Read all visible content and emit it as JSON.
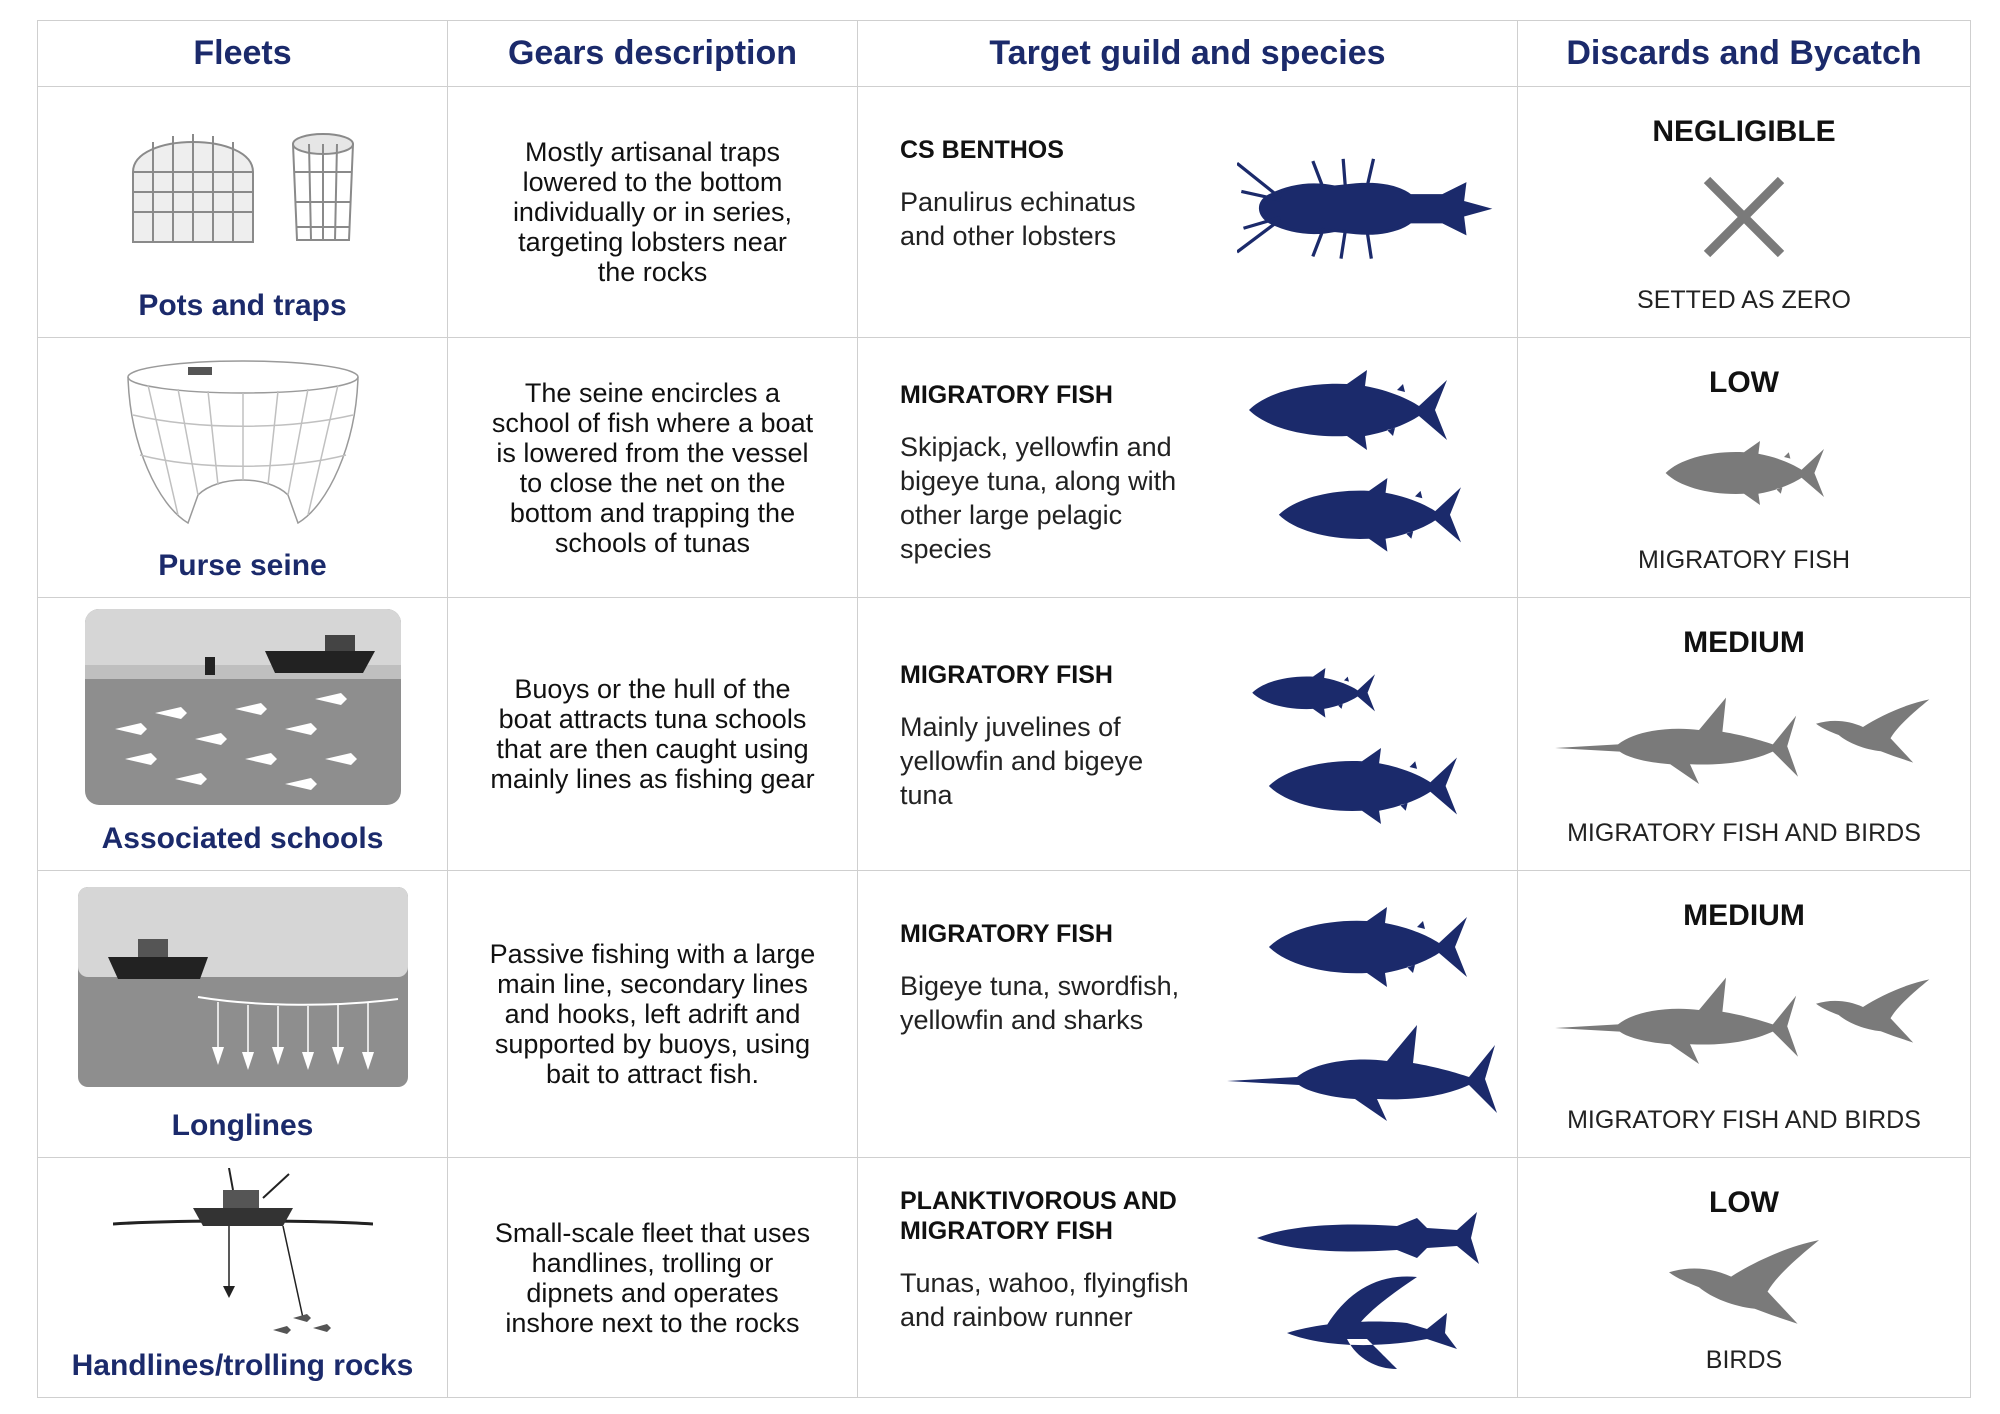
{
  "headers": {
    "fleets": "Fleets",
    "gears": "Gears description",
    "target": "Target guild and species",
    "discards": "Discards and Bycatch"
  },
  "colors": {
    "navy": "#1b2a6b",
    "grey": "#7a7a7a",
    "grid": "#cfcfcf"
  },
  "rows": [
    {
      "fleet": "Pots and traps",
      "fleet_icon": "pots-traps-illustration",
      "gear": "Mostly artisanal traps\nlowered to the bottom\nindividually or in series,\ntargeting lobsters near\nthe rocks",
      "guild": "CS BENTHOS",
      "species": "Panulirus echinatus and other lobsters",
      "target_icon": "lobster-icon",
      "level": "NEGLIGIBLE",
      "bycatch_icon": "cross-icon",
      "note": "SETTED AS ZERO"
    },
    {
      "fleet": "Purse seine",
      "fleet_icon": "purse-seine-illustration",
      "gear": "The seine encircles a\nschool of fish where a boat\nis lowered from the vessel\nto close the net on the\nbottom and trapping the\nschools of tunas",
      "guild": "MIGRATORY FISH",
      "species": "Skipjack, yellowfin and bigeye tuna, along with other large pelagic species",
      "target_icon": "tuna-icon",
      "level": "LOW",
      "bycatch_icon": "tuna-icon",
      "note": "MIGRATORY FISH"
    },
    {
      "fleet": "Associated schools",
      "fleet_icon": "associated-schools-illustration",
      "gear": "Buoys or the hull of the\nboat attracts tuna schools\nthat are then caught using\nmainly lines as fishing gear",
      "guild": "MIGRATORY FISH",
      "species": "Mainly juvelines of yellowfin and bigeye tuna",
      "target_icon": "tuna-icon",
      "level": "MEDIUM",
      "bycatch_icon": "swordfish-bird-icon",
      "note": "MIGRATORY FISH AND BIRDS"
    },
    {
      "fleet": "Longlines",
      "fleet_icon": "longlines-illustration",
      "gear": "Passive fishing with a large\nmain line, secondary lines\nand hooks, left adrift and\nsupported by buoys, using\nbait to attract fish.",
      "guild": "MIGRATORY FISH",
      "species": "Bigeye tuna, swordfish, yellowfin and sharks",
      "target_icon": "tuna-swordfish-icon",
      "level": "MEDIUM",
      "bycatch_icon": "swordfish-bird-icon",
      "note": "MIGRATORY FISH AND BIRDS"
    },
    {
      "fleet": "Handlines/trolling rocks",
      "fleet_icon": "handlines-illustration",
      "gear": "Small-scale fleet that uses\nhandlines, trolling or\ndipnets and operates\ninshore next to the rocks",
      "guild": "PLANKTIVOROUS AND MIGRATORY FISH",
      "species": "Tunas, wahoo, flyingfish and rainbow runner",
      "target_icon": "wahoo-flyingfish-icon",
      "level": "LOW",
      "bycatch_icon": "bird-icon",
      "note": "BIRDS"
    }
  ]
}
